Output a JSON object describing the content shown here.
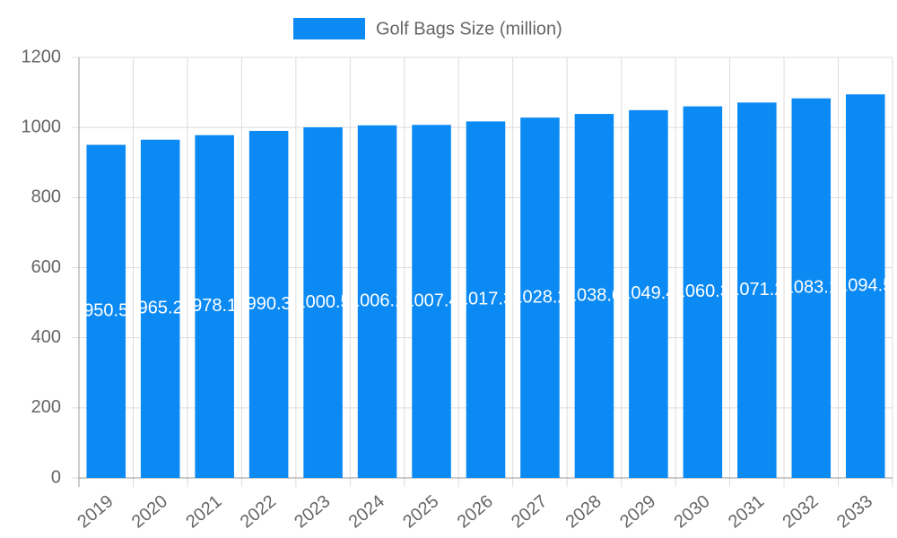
{
  "chart_data": {
    "type": "bar",
    "categories": [
      "2019",
      "2020",
      "2021",
      "2022",
      "2023",
      "2024",
      "2025",
      "2026",
      "2027",
      "2028",
      "2029",
      "2030",
      "2031",
      "2032",
      "2033"
    ],
    "series": [
      {
        "name": "Golf Bags Size (million)",
        "color": "#0b8af4",
        "values": [
          950.5,
          965.2,
          978.1,
          990.3,
          1000.5,
          1006.1,
          1007.4,
          1017.3,
          1028.2,
          1038.6,
          1049.4,
          1060.3,
          1071.2,
          1083.1,
          1094.5
        ]
      }
    ],
    "ylim": [
      0,
      1200
    ],
    "yticks": [
      0,
      200,
      400,
      600,
      800,
      1000,
      1200
    ],
    "grid": true
  }
}
